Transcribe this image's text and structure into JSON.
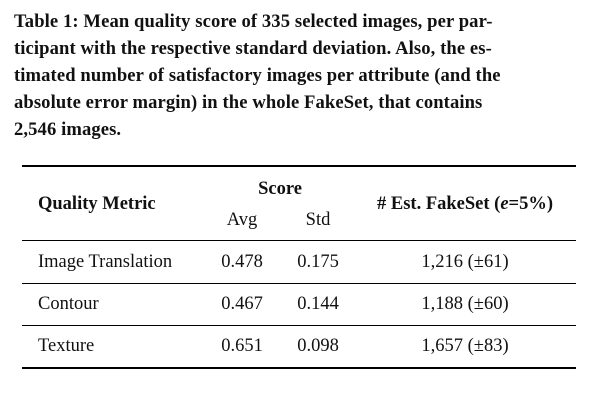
{
  "caption": {
    "lines": [
      "Table 1: Mean quality score of 335 selected images, per par-",
      "ticipant with the respective standard deviation. Also, the es-",
      "timated number of satisfactory images per attribute (and the",
      "absolute error margin) in the whole FakeSet, that contains",
      "2,546 images."
    ]
  },
  "table": {
    "headers": {
      "metric": "Quality Metric",
      "score": "Score",
      "avg": "Avg",
      "std": "Std",
      "est_prefix": "# Est. FakeSet (",
      "est_var": "e",
      "est_suffix": "=5%)"
    },
    "rows": [
      {
        "metric": "Image Translation",
        "avg": "0.478",
        "std": "0.175",
        "est": "1,216 (±61)"
      },
      {
        "metric": "Contour",
        "avg": "0.467",
        "std": "0.144",
        "est": "1,188 (±60)"
      },
      {
        "metric": "Texture",
        "avg": "0.651",
        "std": "0.098",
        "est": "1,657 (±83)"
      }
    ]
  }
}
